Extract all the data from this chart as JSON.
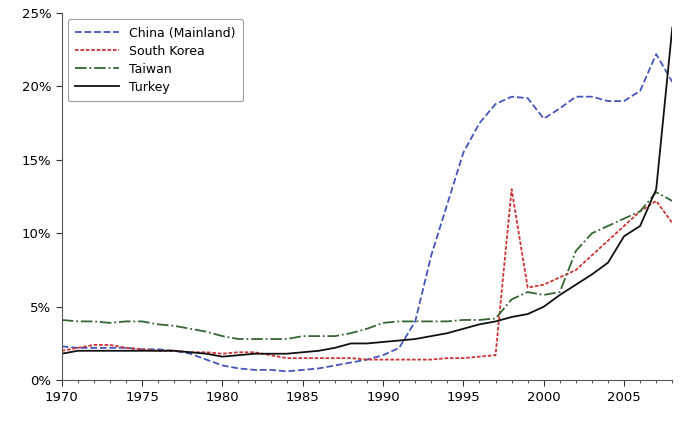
{
  "xlim": [
    1970,
    2008
  ],
  "ylim": [
    0,
    0.25
  ],
  "yticks": [
    0.0,
    0.05,
    0.1,
    0.15,
    0.2,
    0.25
  ],
  "xticks": [
    1970,
    1975,
    1980,
    1985,
    1990,
    1995,
    2000,
    2005
  ],
  "china": {
    "label": "China (Mainland)",
    "color": "#4455bb",
    "linestyle": "--",
    "linewidth": 1.3,
    "years": [
      1970,
      1971,
      1972,
      1973,
      1974,
      1975,
      1976,
      1977,
      1978,
      1979,
      1980,
      1981,
      1982,
      1983,
      1984,
      1985,
      1986,
      1987,
      1988,
      1989,
      1990,
      1991,
      1992,
      1993,
      1994,
      1995,
      1996,
      1997,
      1998,
      1999,
      2000,
      2001,
      2002,
      2003,
      2004,
      2005,
      2006,
      2007,
      2008
    ],
    "values": [
      0.023,
      0.022,
      0.022,
      0.022,
      0.022,
      0.021,
      0.021,
      0.02,
      0.018,
      0.014,
      0.01,
      0.008,
      0.007,
      0.007,
      0.006,
      0.007,
      0.008,
      0.01,
      0.012,
      0.014,
      0.017,
      0.022,
      0.04,
      0.085,
      0.12,
      0.155,
      0.175,
      0.188,
      0.193,
      0.192,
      0.178,
      0.185,
      0.193,
      0.193,
      0.19,
      0.19,
      0.197,
      0.222,
      0.203
    ]
  },
  "korea": {
    "label": "South Korea",
    "color": "#cc3333",
    "linewidth": 1.3,
    "years": [
      1970,
      1971,
      1972,
      1973,
      1974,
      1975,
      1976,
      1977,
      1978,
      1979,
      1980,
      1981,
      1982,
      1983,
      1984,
      1985,
      1986,
      1987,
      1988,
      1989,
      1990,
      1991,
      1992,
      1993,
      1994,
      1995,
      1996,
      1997,
      1998,
      1999,
      2000,
      2001,
      2002,
      2003,
      2004,
      2005,
      2006,
      2007,
      2008
    ],
    "values": [
      0.02,
      0.022,
      0.024,
      0.024,
      0.022,
      0.021,
      0.02,
      0.02,
      0.019,
      0.019,
      0.018,
      0.019,
      0.019,
      0.017,
      0.015,
      0.015,
      0.015,
      0.015,
      0.015,
      0.014,
      0.014,
      0.014,
      0.014,
      0.014,
      0.015,
      0.015,
      0.016,
      0.017,
      0.13,
      0.063,
      0.065,
      0.07,
      0.075,
      0.085,
      0.095,
      0.105,
      0.115,
      0.122,
      0.107
    ]
  },
  "taiwan": {
    "label": "Taiwan",
    "color": "#336633",
    "linestyle": "-.",
    "linewidth": 1.3,
    "years": [
      1970,
      1971,
      1972,
      1973,
      1974,
      1975,
      1976,
      1977,
      1978,
      1979,
      1980,
      1981,
      1982,
      1983,
      1984,
      1985,
      1986,
      1987,
      1988,
      1989,
      1990,
      1991,
      1992,
      1993,
      1994,
      1995,
      1996,
      1997,
      1998,
      1999,
      2000,
      2001,
      2002,
      2003,
      2004,
      2005,
      2006,
      2007,
      2008
    ],
    "values": [
      0.041,
      0.04,
      0.04,
      0.039,
      0.04,
      0.04,
      0.038,
      0.037,
      0.035,
      0.033,
      0.03,
      0.028,
      0.028,
      0.028,
      0.028,
      0.03,
      0.03,
      0.03,
      0.032,
      0.035,
      0.039,
      0.04,
      0.04,
      0.04,
      0.04,
      0.041,
      0.041,
      0.042,
      0.055,
      0.06,
      0.058,
      0.06,
      0.088,
      0.1,
      0.105,
      0.11,
      0.115,
      0.128,
      0.122
    ]
  },
  "turkey": {
    "label": "Turkey",
    "color": "#111111",
    "linestyle": "-",
    "linewidth": 1.3,
    "years": [
      1970,
      1971,
      1972,
      1973,
      1974,
      1975,
      1976,
      1977,
      1978,
      1979,
      1980,
      1981,
      1982,
      1983,
      1984,
      1985,
      1986,
      1987,
      1988,
      1989,
      1990,
      1991,
      1992,
      1993,
      1994,
      1995,
      1996,
      1997,
      1998,
      1999,
      2000,
      2001,
      2002,
      2003,
      2004,
      2005,
      2006,
      2007,
      2008
    ],
    "values": [
      0.018,
      0.02,
      0.02,
      0.02,
      0.02,
      0.02,
      0.02,
      0.02,
      0.019,
      0.018,
      0.016,
      0.017,
      0.018,
      0.018,
      0.018,
      0.019,
      0.02,
      0.022,
      0.025,
      0.025,
      0.026,
      0.027,
      0.028,
      0.03,
      0.032,
      0.035,
      0.038,
      0.04,
      0.043,
      0.045,
      0.05,
      0.058,
      0.065,
      0.072,
      0.08,
      0.098,
      0.105,
      0.13,
      0.24
    ]
  },
  "background_color": "#ffffff",
  "spine_color": "#555555",
  "tick_color": "#333333",
  "font_size": 9.5,
  "legend_fontsize": 9.0,
  "legend_loc": "upper left"
}
